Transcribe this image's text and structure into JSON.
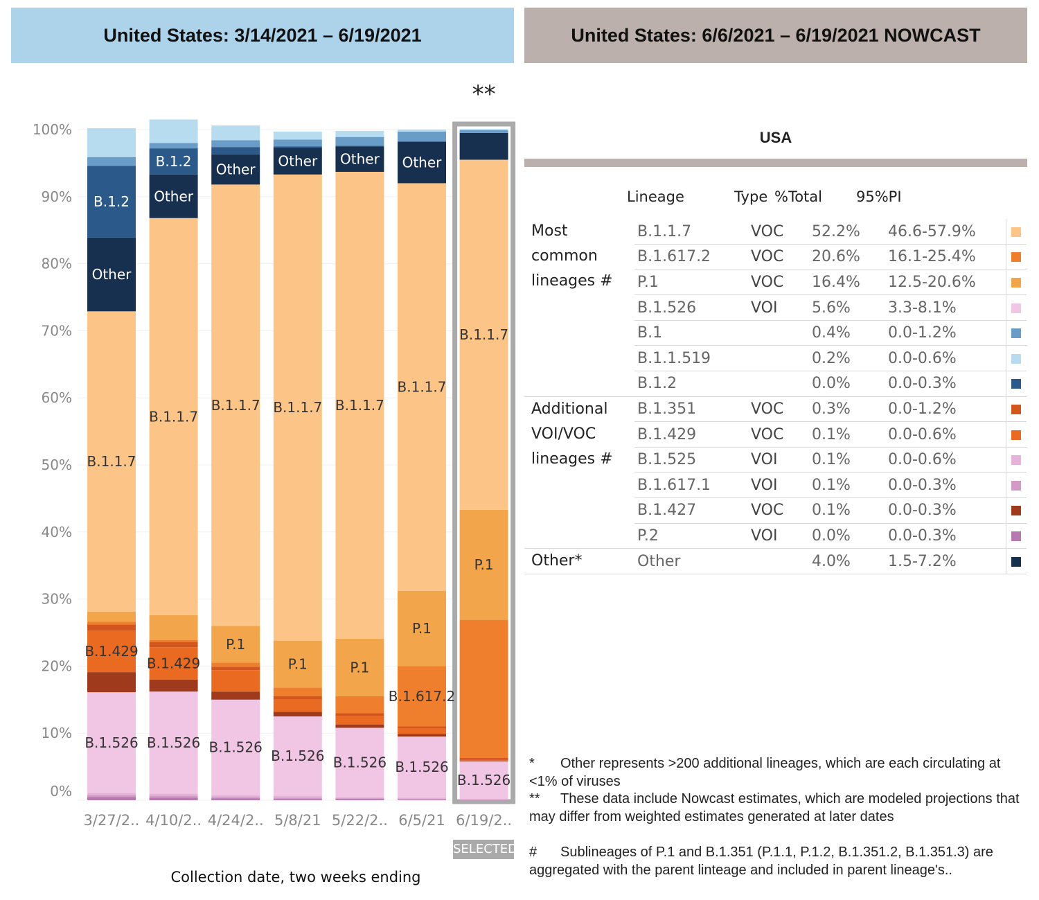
{
  "header_left": "United States: 3/14/2021 – 6/19/2021",
  "header_right": "United States: 6/6/2021 – 6/19/2021 NOWCAST",
  "nowcast_marker": "**",
  "selected_label": "SELECTED",
  "colors": {
    "B.1.1.7": "#fdc487",
    "P.1": "#f2a54a",
    "B.1.617.2": "#ef7f2d",
    "B.1.526": "#f1c6e5",
    "B.1": "#6a9cc8",
    "B.1.1.519": "#b8dcef",
    "B.1.2": "#2b5a8a",
    "B.1.351": "#d3561e",
    "B.1.429": "#ea6a22",
    "B.1.525": "#e5b3d8",
    "B.1.617.1": "#d49ac6",
    "B.1.427": "#a03a1c",
    "P.2": "#b77ab0",
    "Other": "#17304f"
  },
  "chart_data": {
    "type": "bar",
    "stacked": true,
    "xlabel": "Collection date, two weeks ending",
    "ylabel": "",
    "ylim": [
      0,
      100
    ],
    "yticks": [
      "0%",
      "10%",
      "20%",
      "30%",
      "40%",
      "50%",
      "60%",
      "70%",
      "80%",
      "90%",
      "100%"
    ],
    "categories": [
      "3/27/2..",
      "4/10/2..",
      "4/24/2..",
      "5/8/21",
      "5/22/2..",
      "6/5/21",
      "6/19/2.."
    ],
    "nowcast_index": 6,
    "series": [
      {
        "name": "P.2",
        "values": [
          0.5,
          0.4,
          0.3,
          0.2,
          0.2,
          0.1,
          0.0
        ]
      },
      {
        "name": "B.1.617.1",
        "values": [
          0.3,
          0.3,
          0.2,
          0.2,
          0.1,
          0.1,
          0.1
        ]
      },
      {
        "name": "B.1.525",
        "values": [
          0.3,
          0.3,
          0.3,
          0.3,
          0.2,
          0.2,
          0.1
        ]
      },
      {
        "name": "B.1.526",
        "values": [
          15.0,
          15.2,
          14.2,
          11.8,
          10.3,
          9.1,
          5.6
        ]
      },
      {
        "name": "B.1.427",
        "values": [
          3.0,
          1.8,
          1.2,
          0.7,
          0.5,
          0.4,
          0.1
        ]
      },
      {
        "name": "B.1.429",
        "values": [
          6.2,
          4.8,
          3.2,
          1.8,
          1.3,
          0.8,
          0.1
        ]
      },
      {
        "name": "B.1.351",
        "values": [
          0.9,
          0.8,
          0.5,
          0.5,
          0.4,
          0.3,
          0.3
        ]
      },
      {
        "name": "B.1.617.2",
        "values": [
          0.4,
          0.3,
          0.6,
          1.3,
          2.5,
          9.0,
          20.6
        ]
      },
      {
        "name": "P.1",
        "values": [
          1.5,
          3.7,
          5.5,
          7.0,
          8.6,
          11.2,
          16.4
        ]
      },
      {
        "name": "B.1.1.7",
        "values": [
          44.8,
          59.2,
          65.8,
          69.5,
          69.6,
          60.8,
          52.2
        ]
      },
      {
        "name": "Other",
        "values": [
          11.0,
          6.5,
          4.5,
          4.0,
          3.8,
          6.2,
          4.0
        ]
      },
      {
        "name": "B.1.2",
        "values": [
          10.7,
          3.9,
          1.1,
          0.2,
          0.1,
          0.0,
          0.0
        ]
      },
      {
        "name": "B.1",
        "values": [
          1.3,
          0.8,
          1.0,
          1.0,
          1.3,
          1.5,
          0.4
        ]
      },
      {
        "name": "B.1.1.519",
        "values": [
          4.3,
          3.5,
          2.2,
          1.2,
          0.9,
          0.3,
          0.2
        ]
      }
    ],
    "bar_labels": [
      [
        "B.1.526",
        "B.1.429",
        "B.1.1.7",
        "Other",
        "B.1.2"
      ],
      [
        "B.1.526",
        "B.1.429",
        "B.1.1.7",
        "Other",
        "B.1.2"
      ],
      [
        "B.1.526",
        "P.1",
        "B.1.1.7",
        "Other"
      ],
      [
        "B.1.526",
        "P.1",
        "B.1.1.7",
        "Other"
      ],
      [
        "B.1.526",
        "P.1",
        "B.1.1.7",
        "Other"
      ],
      [
        "B.1.526",
        "B.1.617.2",
        "P.1",
        "B.1.1.7",
        "Other"
      ],
      [
        "B.1.526",
        "P.1",
        "B.1.1.7"
      ]
    ]
  },
  "table": {
    "title": "USA",
    "headers": {
      "lineage": "Lineage",
      "type": "Type",
      "pct": "%Total",
      "pi": "95%PI"
    },
    "groups": [
      {
        "lines": [
          "Most",
          "common",
          "lineages #"
        ],
        "rows": [
          {
            "lineage": "B.1.1.7",
            "type": "VOC",
            "pct": "52.2%",
            "pi": "46.6-57.9%"
          },
          {
            "lineage": "B.1.617.2",
            "type": "VOC",
            "pct": "20.6%",
            "pi": "16.1-25.4%"
          },
          {
            "lineage": "P.1",
            "type": "VOC",
            "pct": "16.4%",
            "pi": "12.5-20.6%"
          },
          {
            "lineage": "B.1.526",
            "type": "VOI",
            "pct": "5.6%",
            "pi": "3.3-8.1%"
          },
          {
            "lineage": "B.1",
            "type": "",
            "pct": "0.4%",
            "pi": "0.0-1.2%"
          },
          {
            "lineage": "B.1.1.519",
            "type": "",
            "pct": "0.2%",
            "pi": "0.0-0.6%"
          },
          {
            "lineage": "B.1.2",
            "type": "",
            "pct": "0.0%",
            "pi": "0.0-0.3%"
          }
        ]
      },
      {
        "lines": [
          "Additional",
          "VOI/VOC",
          "lineages #"
        ],
        "rows": [
          {
            "lineage": "B.1.351",
            "type": "VOC",
            "pct": "0.3%",
            "pi": "0.0-1.2%"
          },
          {
            "lineage": "B.1.429",
            "type": "VOC",
            "pct": "0.1%",
            "pi": "0.0-0.6%"
          },
          {
            "lineage": "B.1.525",
            "type": "VOI",
            "pct": "0.1%",
            "pi": "0.0-0.6%"
          },
          {
            "lineage": "B.1.617.1",
            "type": "VOI",
            "pct": "0.1%",
            "pi": "0.0-0.3%"
          },
          {
            "lineage": "B.1.427",
            "type": "VOC",
            "pct": "0.1%",
            "pi": "0.0-0.3%"
          },
          {
            "lineage": "P.2",
            "type": "VOI",
            "pct": "0.0%",
            "pi": "0.0-0.3%"
          }
        ]
      },
      {
        "lines": [
          "Other*"
        ],
        "rows": [
          {
            "lineage": "Other",
            "type": "",
            "pct": "4.0%",
            "pi": "1.5-7.2%"
          }
        ]
      }
    ]
  },
  "footnotes": [
    {
      "mark": "*",
      "text": "Other represents >200 additional lineages, which are each circulating at <1% of viruses"
    },
    {
      "mark": "**",
      "text": "These data include Nowcast estimates, which are modeled projections that may differ from weighted estimates generated at later dates"
    },
    {
      "mark": "#",
      "text": "Sublineages of P.1 and B.1.351 (P.1.1,  P.1.2, B.1.351.2, B.1.351.3) are aggregated with the parent linteage and included in parent lineage's.."
    }
  ]
}
